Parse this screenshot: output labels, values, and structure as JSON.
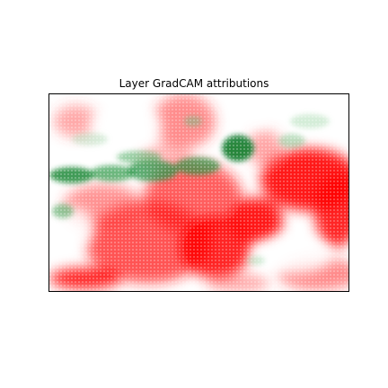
{
  "title": "Layer GradCAM attributions",
  "chart_data": {
    "type": "heatmap",
    "title": "Layer GradCAM attributions",
    "colormap": {
      "positive": "#00802b",
      "negative": "#ff0000",
      "neutral": "#ffffff"
    },
    "axes_visible": false,
    "grid": false
  }
}
